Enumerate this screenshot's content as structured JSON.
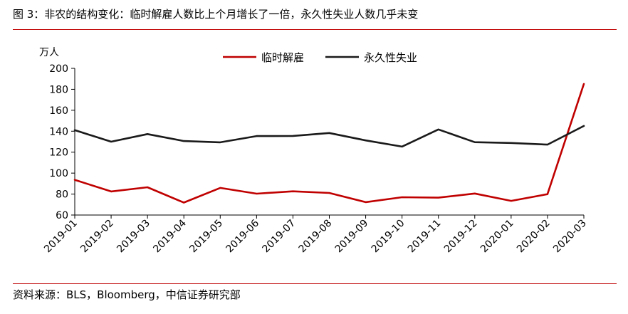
{
  "header": {
    "title": "图 3：非农的结构变化：临时解雇人数比上个月增长了一倍，永久性失业人数几乎未变"
  },
  "footer": {
    "source": "资料来源：BLS，Bloomberg，中信证券研究部"
  },
  "chart_data": {
    "type": "line",
    "unit_label": "万人",
    "categories": [
      "2019-01",
      "2019-02",
      "2019-03",
      "2019-04",
      "2019-05",
      "2019-06",
      "2019-07",
      "2019-08",
      "2019-09",
      "2019-10",
      "2019-11",
      "2019-12",
      "2020-01",
      "2020-02",
      "2020-03"
    ],
    "series": [
      {
        "name": "临时解雇",
        "color": "#c00000",
        "values": [
          93.6,
          82.5,
          86.5,
          71.9,
          85.9,
          80.4,
          82.6,
          81.1,
          72.3,
          77.0,
          76.6,
          80.5,
          73.5,
          79.9,
          185.1
        ]
      },
      {
        "name": "永久性失业",
        "color": "#1a1a1a",
        "values": [
          141.0,
          130.0,
          137.3,
          130.6,
          129.4,
          135.4,
          135.5,
          138.3,
          131.2,
          125.3,
          141.7,
          129.5,
          128.8,
          127.2,
          145.0
        ]
      }
    ],
    "ylim": [
      60,
      200
    ],
    "yticks": [
      60,
      80,
      100,
      120,
      140,
      160,
      180,
      200
    ],
    "legend_position": "top-center",
    "grid": false
  }
}
